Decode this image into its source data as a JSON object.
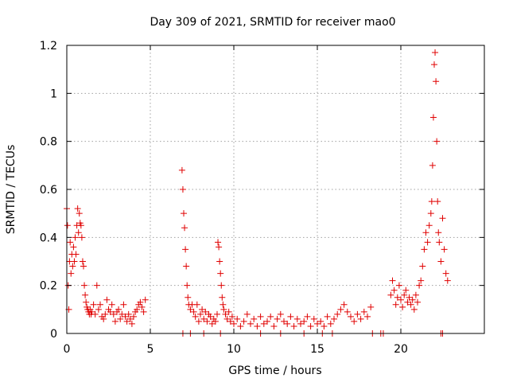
{
  "chart_data": {
    "type": "scatter",
    "title": "Day 309 of 2021, SRMTID for receiver mao0",
    "xlabel": "GPS time / hours",
    "ylabel": "SRMTID / TECUs",
    "xlim": [
      0,
      25
    ],
    "ylim": [
      0,
      1.2
    ],
    "xticks": [
      0,
      5,
      10,
      15,
      20
    ],
    "yticks": [
      0,
      0.2,
      0.4,
      0.6,
      0.8,
      1,
      1.2
    ],
    "xtick_labels": [
      "0",
      "5",
      "10",
      "15",
      "20"
    ],
    "ytick_labels": [
      "0",
      "0.2",
      "0.4",
      "0.6",
      "0.8",
      "1",
      "1.2"
    ],
    "grid": true,
    "marker": "+",
    "color": "#e00000",
    "series": [
      {
        "x": [
          0.0,
          0.04,
          0.08,
          0.12,
          0.16,
          0.2,
          0.25,
          0.3,
          0.35,
          0.4,
          0.45,
          0.5,
          0.55,
          0.6,
          0.65,
          0.7,
          0.75,
          0.8,
          0.85,
          0.9,
          0.95,
          1.0,
          1.05,
          1.1,
          1.15,
          1.2,
          1.25,
          1.3,
          1.35,
          1.4,
          1.45,
          1.5,
          1.6,
          1.7,
          1.8,
          1.9,
          2.0,
          2.1,
          2.2,
          2.3,
          2.4,
          2.5,
          2.6,
          2.7,
          2.8,
          2.9,
          3.0,
          3.1,
          3.2,
          3.3,
          3.4,
          3.5,
          3.6,
          3.7,
          3.8,
          3.9,
          4.0,
          4.1,
          4.2,
          4.3,
          4.4,
          4.5,
          4.6,
          4.7,
          6.9,
          6.95,
          7.0,
          7.05,
          7.1,
          7.15,
          7.2,
          7.25,
          7.3,
          7.4,
          7.5,
          7.6,
          7.7,
          7.8,
          7.9,
          8.0,
          8.1,
          8.2,
          8.3,
          8.4,
          8.5,
          8.6,
          8.7,
          8.8,
          8.9,
          9.0,
          9.05,
          9.1,
          9.15,
          9.2,
          9.25,
          9.3,
          9.35,
          9.4,
          9.5,
          9.6,
          9.7,
          9.8,
          9.9,
          10.0,
          10.2,
          10.4,
          10.6,
          10.8,
          11.0,
          11.2,
          11.4,
          11.6,
          11.8,
          12.0,
          12.2,
          12.4,
          12.6,
          12.8,
          13.0,
          13.2,
          13.4,
          13.6,
          13.8,
          14.0,
          14.2,
          14.4,
          14.6,
          14.8,
          15.0,
          15.2,
          15.4,
          15.6,
          15.8,
          16.0,
          16.2,
          16.4,
          16.6,
          16.8,
          17.0,
          17.2,
          17.4,
          17.6,
          17.8,
          18.0,
          18.2,
          19.4,
          19.5,
          19.6,
          19.7,
          19.8,
          19.9,
          20.0,
          20.1,
          20.2,
          20.3,
          20.4,
          20.5,
          20.6,
          20.7,
          20.8,
          20.9,
          21.0,
          21.1,
          21.2,
          21.3,
          21.4,
          21.5,
          21.6,
          21.7,
          21.8,
          21.85,
          21.9,
          21.95,
          22.0,
          22.05,
          22.1,
          22.15,
          22.2,
          22.25,
          22.3,
          22.4,
          22.5,
          22.6,
          22.7,
          22.8,
          6.95,
          7.4,
          8.2,
          9.2,
          11.6,
          12.8,
          14.2,
          15.3,
          15.9,
          18.3,
          18.8,
          18.95,
          22.4,
          22.5
        ],
        "y": [
          0.52,
          0.45,
          0.2,
          0.1,
          0.3,
          0.38,
          0.25,
          0.33,
          0.28,
          0.36,
          0.3,
          0.4,
          0.33,
          0.45,
          0.52,
          0.42,
          0.5,
          0.46,
          0.45,
          0.4,
          0.3,
          0.28,
          0.2,
          0.16,
          0.13,
          0.11,
          0.1,
          0.09,
          0.08,
          0.1,
          0.08,
          0.09,
          0.12,
          0.08,
          0.2,
          0.1,
          0.12,
          0.07,
          0.06,
          0.08,
          0.14,
          0.1,
          0.09,
          0.12,
          0.08,
          0.05,
          0.09,
          0.1,
          0.06,
          0.08,
          0.12,
          0.07,
          0.05,
          0.08,
          0.06,
          0.04,
          0.07,
          0.09,
          0.1,
          0.12,
          0.13,
          0.11,
          0.09,
          0.14,
          0.68,
          0.6,
          0.5,
          0.44,
          0.35,
          0.28,
          0.2,
          0.15,
          0.12,
          0.1,
          0.12,
          0.09,
          0.07,
          0.12,
          0.05,
          0.08,
          0.1,
          0.06,
          0.09,
          0.05,
          0.08,
          0.07,
          0.04,
          0.06,
          0.05,
          0.08,
          0.38,
          0.36,
          0.3,
          0.25,
          0.2,
          0.15,
          0.12,
          0.1,
          0.08,
          0.06,
          0.09,
          0.05,
          0.07,
          0.04,
          0.06,
          0.03,
          0.05,
          0.08,
          0.04,
          0.06,
          0.03,
          0.07,
          0.04,
          0.05,
          0.07,
          0.03,
          0.06,
          0.08,
          0.05,
          0.04,
          0.07,
          0.03,
          0.06,
          0.04,
          0.05,
          0.07,
          0.03,
          0.06,
          0.04,
          0.05,
          0.03,
          0.07,
          0.04,
          0.06,
          0.08,
          0.1,
          0.12,
          0.09,
          0.07,
          0.05,
          0.08,
          0.06,
          0.09,
          0.07,
          0.11,
          0.16,
          0.22,
          0.18,
          0.12,
          0.15,
          0.2,
          0.14,
          0.11,
          0.16,
          0.18,
          0.13,
          0.15,
          0.12,
          0.14,
          0.1,
          0.16,
          0.13,
          0.2,
          0.22,
          0.28,
          0.35,
          0.42,
          0.38,
          0.45,
          0.5,
          0.55,
          0.7,
          0.9,
          1.12,
          1.17,
          1.05,
          0.8,
          0.55,
          0.42,
          0.38,
          0.3,
          0.48,
          0.35,
          0.25,
          0.22,
          0.0,
          0.0,
          0.0,
          0.0,
          0.0,
          0.0,
          0.0,
          0.0,
          0.0,
          0.0,
          0.0,
          0.0,
          0.0,
          0.0
        ]
      }
    ]
  }
}
